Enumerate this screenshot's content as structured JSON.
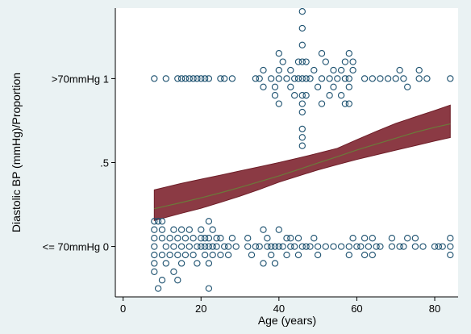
{
  "chart_data": {
    "type": "scatter",
    "title": "",
    "xlabel": "Age (years)",
    "ylabel": "Diastolic BP (mmHg)/Proportion",
    "xlim": [
      -2,
      86
    ],
    "ylim": [
      -0.3,
      1.42
    ],
    "x_ticks": [
      {
        "value": 0,
        "label": "0"
      },
      {
        "value": 20,
        "label": "20"
      },
      {
        "value": 40,
        "label": "40"
      },
      {
        "value": 60,
        "label": "60"
      },
      {
        "value": 80,
        "label": "80"
      }
    ],
    "y_ticks": [
      {
        "value": 0,
        "label": "<= 70mmHg 0"
      },
      {
        "value": 0.5,
        "label": ".5"
      },
      {
        "value": 1,
        "label": ">70mmHg 1"
      }
    ],
    "grid": false,
    "legend": "none",
    "colors": {
      "background": "#eaf2f3",
      "plot_region": "#ffffff",
      "markers": "#1a4f6e",
      "band_fill": "#8b3a44",
      "band_edge": "#6e1e28",
      "fit_line": "#6b7a3a"
    },
    "series": [
      {
        "kind": "points-high-bp",
        "points": [
          [
            8,
            1
          ],
          [
            11,
            1
          ],
          [
            14,
            1
          ],
          [
            15,
            1
          ],
          [
            16,
            1
          ],
          [
            17,
            1
          ],
          [
            18,
            1
          ],
          [
            19,
            1
          ],
          [
            20,
            1
          ],
          [
            21,
            1
          ],
          [
            22,
            1
          ],
          [
            25,
            1
          ],
          [
            26,
            1
          ],
          [
            28,
            1
          ],
          [
            34,
            1
          ],
          [
            35,
            1
          ],
          [
            36,
            0.95
          ],
          [
            36,
            1.05
          ],
          [
            38,
            1
          ],
          [
            39,
            0.9
          ],
          [
            39,
            0.95
          ],
          [
            40,
            0.85
          ],
          [
            40,
            1
          ],
          [
            40,
            1.05
          ],
          [
            40,
            1.15
          ],
          [
            41,
            1.1
          ],
          [
            42,
            1
          ],
          [
            43,
            0.95
          ],
          [
            43,
            1.05
          ],
          [
            44,
            0.9
          ],
          [
            44,
            1
          ],
          [
            45,
            1
          ],
          [
            45,
            1.1
          ],
          [
            46,
            0.85
          ],
          [
            46,
            0.9
          ],
          [
            46,
            1
          ],
          [
            46,
            1.1
          ],
          [
            46,
            1.2
          ],
          [
            46,
            1.3
          ],
          [
            46,
            1.4
          ],
          [
            47,
            0.9
          ],
          [
            47,
            1
          ],
          [
            47,
            1.1
          ],
          [
            48,
            1
          ],
          [
            49,
            1.05
          ],
          [
            50,
            0.95
          ],
          [
            51,
            0.85
          ],
          [
            51,
            1
          ],
          [
            51,
            1.15
          ],
          [
            52,
            1.1
          ],
          [
            53,
            0.9
          ],
          [
            53,
            1
          ],
          [
            54,
            0.95
          ],
          [
            54,
            1.05
          ],
          [
            55,
            1
          ],
          [
            56,
            0.9
          ],
          [
            56,
            1.05
          ],
          [
            57,
            0.85
          ],
          [
            57,
            1
          ],
          [
            57,
            1.1
          ],
          [
            58,
            0.85
          ],
          [
            58,
            0.95
          ],
          [
            58,
            1
          ],
          [
            58,
            1.15
          ],
          [
            59,
            1.05
          ],
          [
            59,
            1.1
          ],
          [
            62,
            1
          ],
          [
            64,
            1
          ],
          [
            66,
            1
          ],
          [
            68,
            1
          ],
          [
            70,
            1
          ],
          [
            71,
            1.05
          ],
          [
            72,
            1
          ],
          [
            73,
            0.95
          ],
          [
            76,
            1
          ],
          [
            76,
            1.05
          ],
          [
            78,
            1
          ],
          [
            84,
            1
          ]
        ]
      },
      {
        "kind": "points-column-46",
        "points": [
          [
            46,
            0.8
          ],
          [
            46,
            0.7
          ],
          [
            46,
            0.65
          ],
          [
            46,
            0.6
          ]
        ]
      },
      {
        "kind": "points-low-bp",
        "points": [
          [
            8,
            0.15
          ],
          [
            8,
            0.1
          ],
          [
            8,
            0.05
          ],
          [
            8,
            0
          ],
          [
            8,
            -0.05
          ],
          [
            8,
            -0.1
          ],
          [
            8,
            -0.15
          ],
          [
            9,
            -0.25
          ],
          [
            9,
            0.15
          ],
          [
            10,
            -0.2
          ],
          [
            10,
            -0.05
          ],
          [
            10,
            0.05
          ],
          [
            10,
            0.15
          ],
          [
            10,
            0.1
          ],
          [
            11,
            0
          ],
          [
            11,
            -0.1
          ],
          [
            12,
            0.05
          ],
          [
            12,
            -0.05
          ],
          [
            13,
            -0.15
          ],
          [
            13,
            0
          ],
          [
            13,
            0.1
          ],
          [
            14,
            0.05
          ],
          [
            14,
            -0.05
          ],
          [
            14,
            -0.2
          ],
          [
            15,
            0
          ],
          [
            15,
            0.1
          ],
          [
            15,
            -0.1
          ],
          [
            16,
            0.05
          ],
          [
            16,
            -0.05
          ],
          [
            17,
            0
          ],
          [
            17,
            0.1
          ],
          [
            18,
            0.05
          ],
          [
            18,
            -0.05
          ],
          [
            19,
            0
          ],
          [
            19,
            -0.1
          ],
          [
            20,
            0
          ],
          [
            20,
            0.05
          ],
          [
            20,
            0.1
          ],
          [
            21,
            -0.05
          ],
          [
            21,
            0
          ],
          [
            21,
            0.05
          ],
          [
            22,
            -0.25
          ],
          [
            22,
            -0.1
          ],
          [
            22,
            0
          ],
          [
            22,
            0.05
          ],
          [
            22,
            0.15
          ],
          [
            23,
            0
          ],
          [
            23,
            -0.05
          ],
          [
            23,
            0.1
          ],
          [
            24,
            0.05
          ],
          [
            24,
            0
          ],
          [
            25,
            -0.05
          ],
          [
            25,
            0.05
          ],
          [
            26,
            0
          ],
          [
            27,
            0
          ],
          [
            27,
            -0.05
          ],
          [
            28,
            0.05
          ],
          [
            29,
            0
          ],
          [
            32,
            0
          ],
          [
            32,
            0.05
          ],
          [
            33,
            -0.05
          ],
          [
            34,
            0
          ],
          [
            35,
            0
          ],
          [
            36,
            0.1
          ],
          [
            36,
            -0.1
          ],
          [
            37,
            0
          ],
          [
            37,
            0.05
          ],
          [
            38,
            0
          ],
          [
            38,
            -0.05
          ],
          [
            39,
            0
          ],
          [
            39,
            -0.1
          ],
          [
            40,
            0.1
          ],
          [
            40,
            0
          ],
          [
            41,
            0
          ],
          [
            42,
            0.05
          ],
          [
            42,
            -0.05
          ],
          [
            43,
            0
          ],
          [
            43,
            0.05
          ],
          [
            44,
            0
          ],
          [
            45,
            -0.05
          ],
          [
            45,
            0.05
          ],
          [
            46,
            0
          ],
          [
            47,
            0
          ],
          [
            48,
            0
          ],
          [
            49,
            0.05
          ],
          [
            50,
            0
          ],
          [
            50,
            -0.05
          ],
          [
            52,
            0
          ],
          [
            54,
            0
          ],
          [
            56,
            0
          ],
          [
            58,
            0
          ],
          [
            58,
            -0.05
          ],
          [
            59,
            0.05
          ],
          [
            60,
            0
          ],
          [
            61,
            0
          ],
          [
            62,
            -0.05
          ],
          [
            62,
            0.05
          ],
          [
            63,
            0
          ],
          [
            64,
            0.05
          ],
          [
            64,
            -0.05
          ],
          [
            65,
            0
          ],
          [
            66,
            0
          ],
          [
            69,
            0
          ],
          [
            69,
            0.05
          ],
          [
            71,
            0
          ],
          [
            72,
            0
          ],
          [
            73,
            0.05
          ],
          [
            75,
            0
          ],
          [
            75,
            0.05
          ],
          [
            77,
            0
          ],
          [
            80,
            0
          ],
          [
            81,
            0
          ],
          [
            82,
            0
          ],
          [
            84,
            -0.05
          ],
          [
            84,
            0
          ],
          [
            84,
            0.05
          ]
        ]
      },
      {
        "kind": "fit-line",
        "x": [
          8,
          15,
          20,
          25,
          30,
          35,
          40,
          45,
          50,
          55,
          60,
          65,
          70,
          75,
          80,
          84
        ],
        "y": [
          0.225,
          0.262,
          0.29,
          0.32,
          0.352,
          0.386,
          0.42,
          0.458,
          0.497,
          0.535,
          0.575,
          0.61,
          0.645,
          0.68,
          0.71,
          0.73
        ]
      },
      {
        "kind": "confidence-band",
        "x": [
          8,
          15,
          20,
          25,
          30,
          35,
          40,
          45,
          50,
          55,
          60,
          65,
          70,
          75,
          80,
          84
        ],
        "lower": [
          0.155,
          0.198,
          0.228,
          0.263,
          0.3,
          0.34,
          0.383,
          0.42,
          0.456,
          0.488,
          0.518,
          0.546,
          0.574,
          0.601,
          0.628,
          0.649
        ],
        "upper": [
          0.337,
          0.376,
          0.401,
          0.425,
          0.45,
          0.475,
          0.5,
          0.527,
          0.555,
          0.585,
          0.636,
          0.686,
          0.733,
          0.772,
          0.81,
          0.842
        ]
      }
    ]
  }
}
